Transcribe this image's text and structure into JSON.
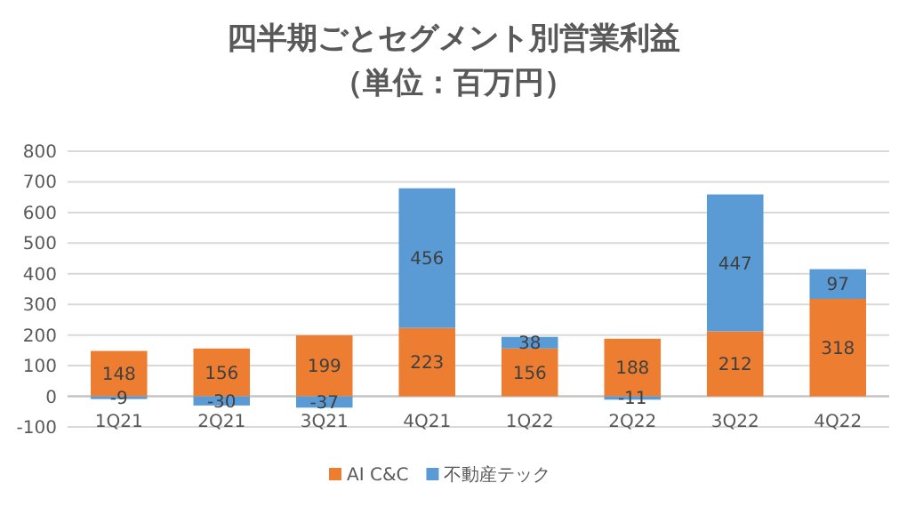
{
  "chart_data": {
    "type": "bar",
    "title": "四半期ごとセグメント別営業利益",
    "subtitle": "（単位：百万円）",
    "categories": [
      "1Q21",
      "2Q21",
      "3Q21",
      "4Q21",
      "1Q22",
      "2Q22",
      "3Q22",
      "4Q22"
    ],
    "series": [
      {
        "name": "AI C&C",
        "color": "#ed7d31",
        "values": [
          148,
          156,
          199,
          223,
          156,
          188,
          212,
          318
        ]
      },
      {
        "name": "不動産テック",
        "color": "#5b9bd5",
        "values": [
          -9,
          -30,
          -37,
          456,
          38,
          -11,
          447,
          97
        ]
      }
    ],
    "stacked": true,
    "ylim": [
      -100,
      800
    ],
    "yticks": [
      -100,
      0,
      100,
      200,
      300,
      400,
      500,
      600,
      700,
      800
    ],
    "grid": "y",
    "legend": "bottom",
    "data_labels": true
  }
}
